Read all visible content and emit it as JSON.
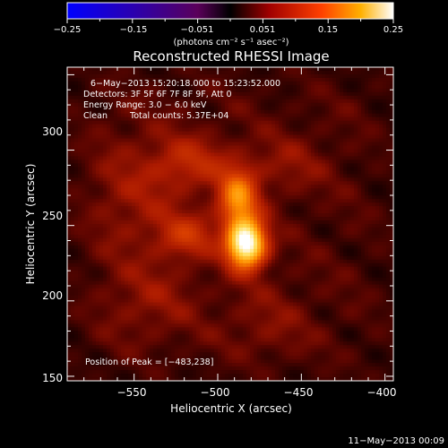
{
  "chart_data": {
    "type": "heatmap",
    "title": "Reconstructed RHESSI Image",
    "xlabel": "Heliocentric X (arcsec)",
    "ylabel": "Heliocentric Y (arcsec)",
    "xlim": [
      -590,
      -395
    ],
    "ylim": [
      147,
      355
    ],
    "x_ticks": [
      -550,
      -500,
      -450,
      -400
    ],
    "y_ticks": [
      150,
      200,
      250,
      300
    ],
    "x_tick_labels": [
      "−550",
      "−500",
      "−450",
      "−400"
    ],
    "y_tick_labels": [
      "150",
      "200",
      "250",
      "300"
    ],
    "colorbar": {
      "range": [
        -0.25,
        0.25
      ],
      "tick_labels": [
        "−0.25",
        "−0.15",
        "−0.051",
        "0.051",
        "0.15",
        "0.25"
      ],
      "units": "(photons cm⁻² s⁻¹ asec⁻²)"
    },
    "annotations": {
      "time_range": "6−May−2013 15:20:18.000 to 15:23:52.000",
      "detectors": "Detectors: 3F 5F 6F 7F 8F 9F, Att 0",
      "energy_range": "Energy Range: 3.0 − 6.0 keV",
      "method": "Clean",
      "total_counts": "Total counts: 5.37E+04",
      "peak_position": "Position of Peak = [−483,238]"
    },
    "peak": {
      "x": -483,
      "y": 238
    },
    "sources": [
      {
        "x": -483,
        "y": 238,
        "sx": 8,
        "sy": 11,
        "amp": 1.0
      },
      {
        "x": -488,
        "y": 268,
        "sx": 8,
        "sy": 13,
        "amp": 0.5
      },
      {
        "x": -518,
        "y": 243,
        "sx": 12,
        "sy": 10,
        "amp": 0.22
      },
      {
        "x": -515,
        "y": 292,
        "sx": 16,
        "sy": 12,
        "amp": 0.18
      },
      {
        "x": -548,
        "y": 270,
        "sx": 22,
        "sy": 30,
        "amp": 0.12
      },
      {
        "x": -460,
        "y": 290,
        "sx": 18,
        "sy": 14,
        "amp": 0.1
      },
      {
        "x": -540,
        "y": 200,
        "sx": 20,
        "sy": 18,
        "amp": 0.1
      },
      {
        "x": -470,
        "y": 185,
        "sx": 18,
        "sy": 18,
        "amp": 0.08
      }
    ]
  },
  "footer": {
    "date": "11−May−2013 00:09"
  }
}
